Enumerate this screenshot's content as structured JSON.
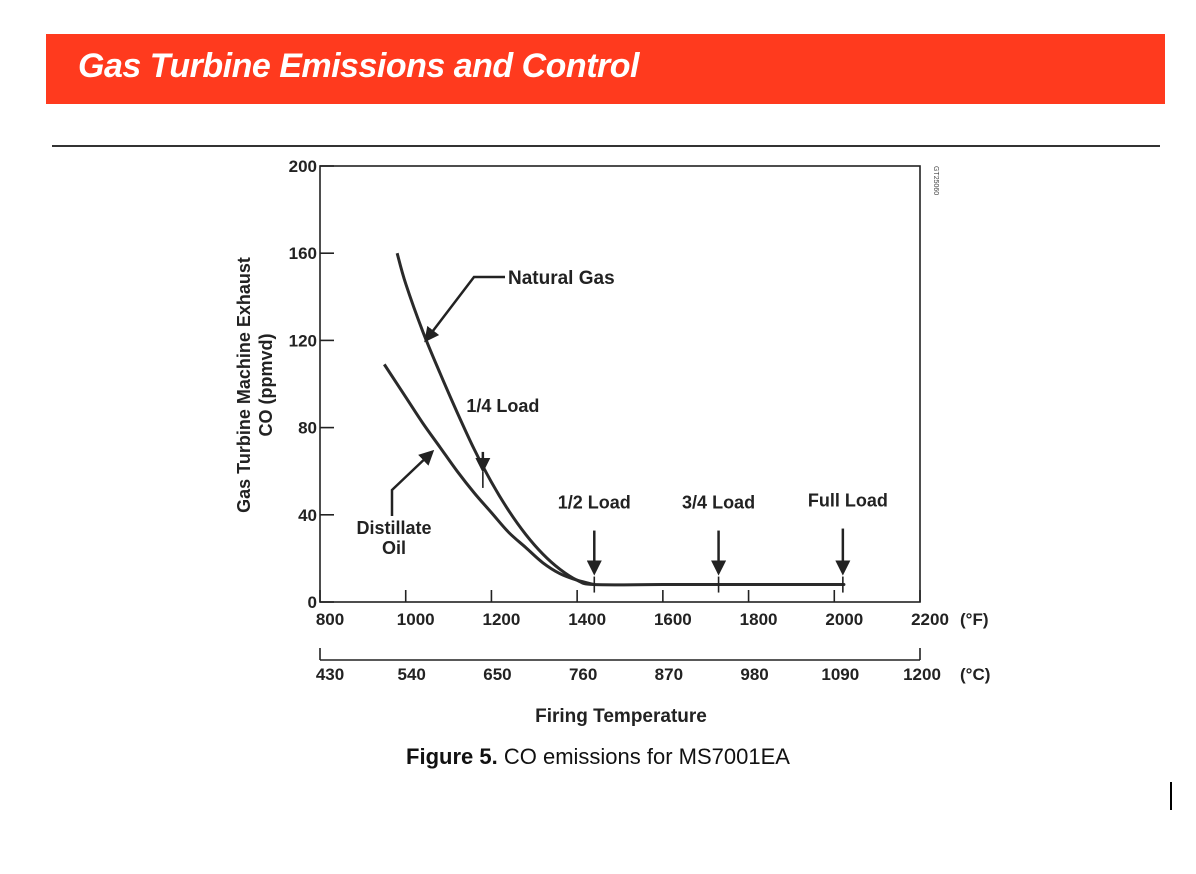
{
  "header": {
    "title": "Gas Turbine Emissions and Control",
    "color": "#ff3a1e"
  },
  "caption": {
    "figure_label": "Figure 5.",
    "text": "CO emissions for MS7001EA"
  },
  "chart_data": {
    "type": "line",
    "ylabel_line1": "Gas Turbine Machine Exhaust",
    "ylabel_line2": "CO (ppmvd)",
    "xlabel": "Firing Temperature",
    "code_label": "GT25060",
    "xlim": [
      800,
      2200
    ],
    "ylim": [
      0,
      200
    ],
    "y_ticks": [
      0,
      40,
      80,
      120,
      160,
      200
    ],
    "x_ticks_F": [
      800,
      1000,
      1200,
      1400,
      1600,
      1800,
      2000,
      2200
    ],
    "x_unit_F": "(°F)",
    "x_ticks_C": [
      430,
      540,
      650,
      760,
      870,
      980,
      1090,
      1200
    ],
    "x_unit_C": "(°C)",
    "grid": false,
    "series": [
      {
        "name": "Natural Gas",
        "x": [
          980,
          1000,
          1040,
          1080,
          1120,
          1160,
          1200,
          1240,
          1280,
          1320,
          1360,
          1400,
          1440,
          1600,
          1800,
          2000,
          2020
        ],
        "y": [
          160,
          146,
          124,
          105,
          87,
          70,
          55,
          42,
          31,
          22,
          15,
          10,
          8,
          8,
          8,
          8,
          8
        ]
      },
      {
        "name": "Distillate Oil",
        "x": [
          950,
          1000,
          1040,
          1080,
          1120,
          1160,
          1200,
          1240,
          1280,
          1320,
          1360,
          1400,
          1440
        ],
        "y": [
          109,
          94,
          82,
          71,
          60,
          50,
          41,
          32,
          25,
          18,
          13,
          10,
          8
        ]
      }
    ],
    "annotations": [
      {
        "label": "1/4 Load",
        "x": 1180,
        "y": 56
      },
      {
        "label": "1/2 Load",
        "x": 1440,
        "y": 8
      },
      {
        "label": "3/4 Load",
        "x": 1730,
        "y": 8
      },
      {
        "label": "Full Load",
        "x": 2020,
        "y": 8
      }
    ],
    "series_labels": [
      {
        "text": "Natural Gas"
      },
      {
        "text": "Distillate"
      },
      {
        "text": "Oil"
      }
    ]
  }
}
